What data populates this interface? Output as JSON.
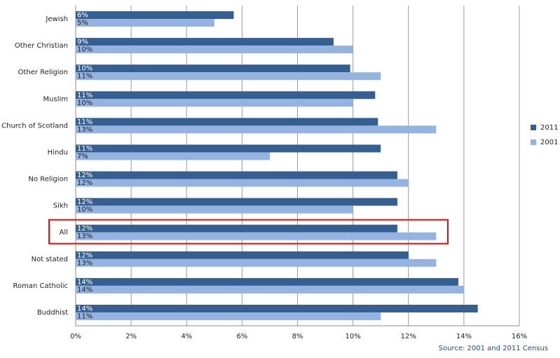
{
  "chart_data": {
    "type": "bar",
    "orientation": "horizontal",
    "categories": [
      "Jewish",
      "Other Christian",
      "Other Religion",
      "Muslim",
      "Church of Scotland",
      "Hindu",
      "No Religion",
      "Sikh",
      "All",
      "Not stated",
      "Roman Catholic",
      "Buddhist"
    ],
    "series": [
      {
        "name": "2011",
        "color": "#365f91",
        "values": [
          5.7,
          9.3,
          9.9,
          10.8,
          10.9,
          11.0,
          11.6,
          11.6,
          11.6,
          12.0,
          13.8,
          14.5
        ],
        "value_labels": [
          "6%",
          "9%",
          "10%",
          "11%",
          "11%",
          "11%",
          "12%",
          "12%",
          "12%",
          "12%",
          "14%",
          "14%"
        ]
      },
      {
        "name": "2001",
        "color": "#95b3e0",
        "values": [
          5.0,
          10.0,
          11.0,
          10.0,
          13.0,
          7.0,
          12.0,
          10.0,
          13.0,
          13.0,
          14.0,
          11.0
        ],
        "value_labels": [
          "5%",
          "10%",
          "11%",
          "10%",
          "13%",
          "7%",
          "12%",
          "10%",
          "13%",
          "13%",
          "14%",
          "11%"
        ]
      }
    ],
    "xlim": [
      0,
      16
    ],
    "xticks": [
      {
        "value": 0,
        "label": "0%"
      },
      {
        "value": 2,
        "label": "2%"
      },
      {
        "value": 4,
        "label": "4%"
      },
      {
        "value": 6,
        "label": "6%"
      },
      {
        "value": 8,
        "label": "8%"
      },
      {
        "value": 10,
        "label": "10%"
      },
      {
        "value": 12,
        "label": "12%"
      },
      {
        "value": 14,
        "label": "14%"
      },
      {
        "value": 16,
        "label": "16%"
      }
    ],
    "grid": true,
    "legend": "right",
    "source": "Source: 2001 and 2011 Census"
  }
}
